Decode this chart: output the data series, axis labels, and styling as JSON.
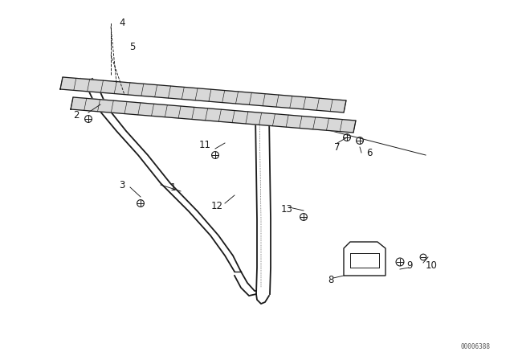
{
  "bg_color": "#ffffff",
  "line_color": "#1a1a1a",
  "figure_number": "00006388",
  "fig_w": 6.4,
  "fig_h": 4.48,
  "dpi": 100
}
